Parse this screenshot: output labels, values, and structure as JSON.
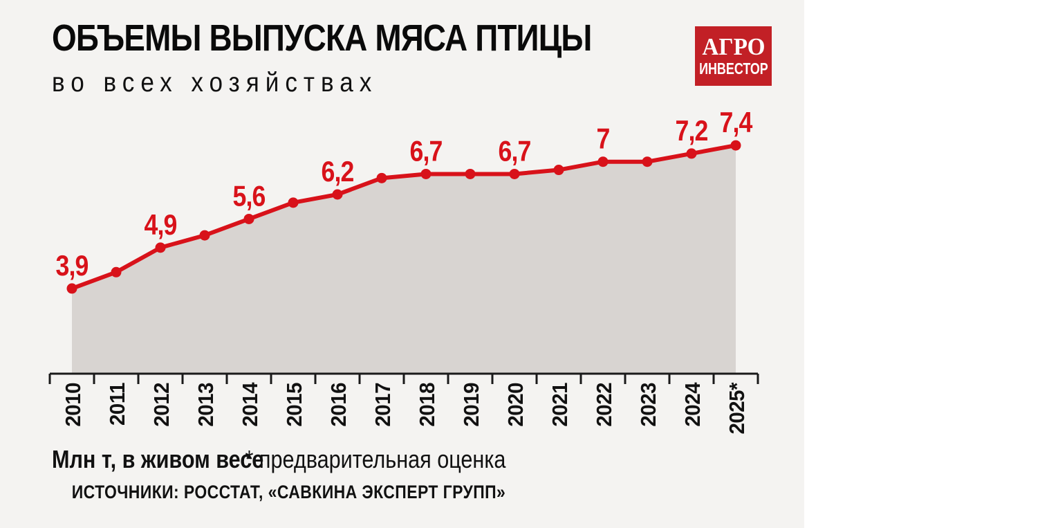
{
  "page": {
    "background": "#ffffff",
    "card_background": "#f4f3f1"
  },
  "header": {
    "title": "ОБЪЕМЫ ВЫПУСКА МЯСА ПТИЦЫ",
    "subtitle": "во всех хозяйствах"
  },
  "logo": {
    "line1": "АГРО",
    "line2": "ИНВЕСТОР",
    "background": "#c22026",
    "text_color": "#ffffff"
  },
  "footer": {
    "unit_note": "Млн т, в живом весе",
    "estimate_note": "* предварительная оценка",
    "sources": "ИСТОЧНИКИ: РОССТАТ, «САВКИНА ЭКСПЕРТ ГРУПП»"
  },
  "chart_data": {
    "type": "area",
    "title": "ОБЪЕМЫ ВЫПУСКА МЯСА ПТИЦЫ",
    "subtitle": "во всех хозяйствах",
    "ylabel": "Млн т, в живом весе",
    "xlabel": "",
    "categories": [
      "2010",
      "2011",
      "2012",
      "2013",
      "2014",
      "2015",
      "2016",
      "2017",
      "2018",
      "2019",
      "2020",
      "2021",
      "2022",
      "2023",
      "2024",
      "2025*"
    ],
    "values": [
      3.9,
      4.3,
      4.9,
      5.2,
      5.6,
      6.0,
      6.2,
      6.6,
      6.7,
      6.7,
      6.7,
      6.8,
      7.0,
      7.0,
      7.2,
      7.4
    ],
    "point_labels": [
      "3,9",
      "",
      "4,9",
      "",
      "5,6",
      "",
      "6,2",
      "",
      "6,7",
      "",
      "6,7",
      "",
      "7",
      "",
      "7,2",
      "7,4"
    ],
    "ylim": [
      1.8,
      8.4
    ],
    "grid": false,
    "legend": "none",
    "line_color": "#d8121a",
    "area_color": "#d8d4d1",
    "axis_color": "#1a1a1a",
    "label_color": "#d8121a",
    "tick_label_color": "#111111"
  }
}
